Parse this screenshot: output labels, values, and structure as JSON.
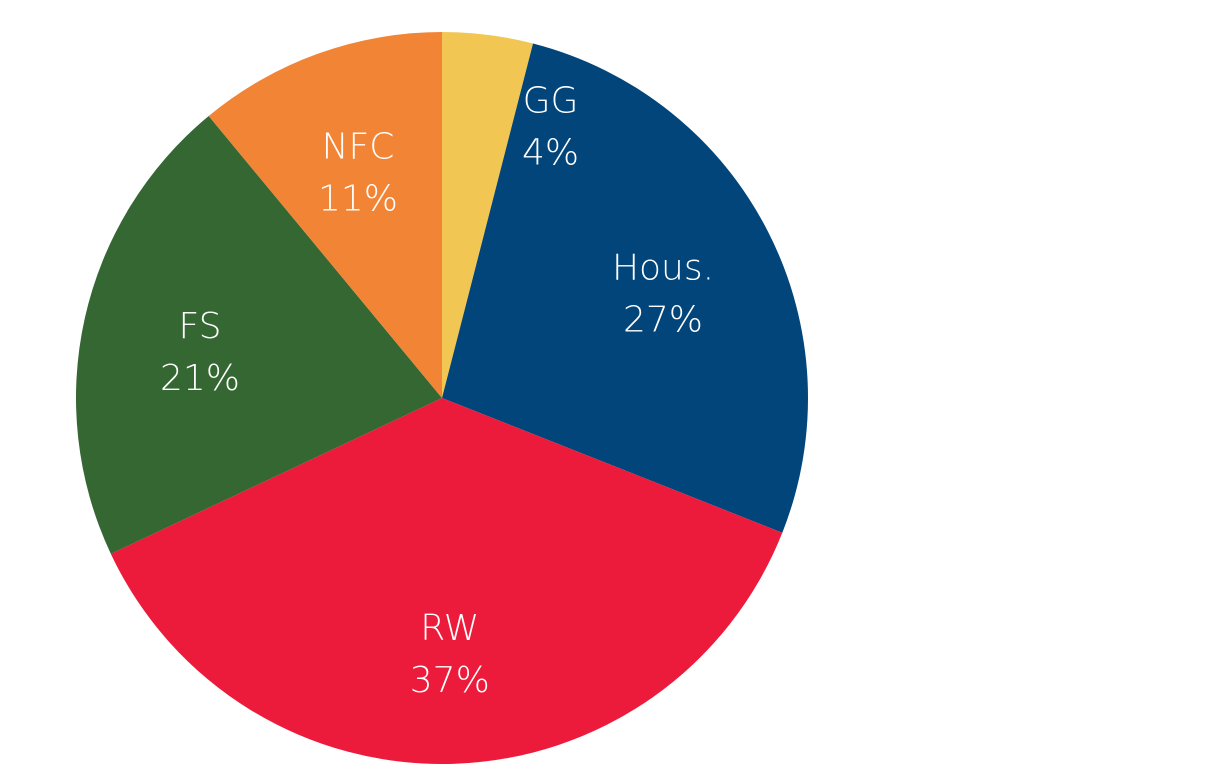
{
  "chart_data": {
    "type": "pie",
    "start_angle_deg": 0,
    "direction": "clockwise",
    "slices": [
      {
        "name": "GG",
        "value": 4,
        "label": "GG",
        "pct_label": "4%",
        "color": "#F2C653"
      },
      {
        "name": "Hous.",
        "value": 27,
        "label": "Hous.",
        "pct_label": "27%",
        "color": "#02457A"
      },
      {
        "name": "RW",
        "value": 37,
        "label": "RW",
        "pct_label": "37%",
        "color": "#EC1B3B"
      },
      {
        "name": "FS",
        "value": 21,
        "label": "FS",
        "pct_label": "21%",
        "color": "#356733"
      },
      {
        "name": "NFC",
        "value": 11,
        "label": "NFC",
        "pct_label": "11%",
        "color": "#F28435"
      }
    ]
  }
}
